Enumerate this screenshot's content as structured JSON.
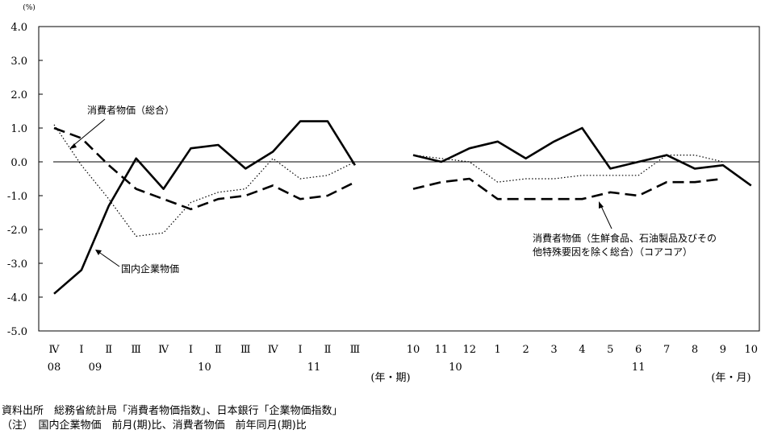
{
  "chart_data": {
    "type": "line",
    "y_unit": "(%)",
    "ylim": [
      -5.0,
      4.0
    ],
    "y_ticks": [
      "4.0",
      "3.0",
      "2.0",
      "1.0",
      "0.0",
      "-1.0",
      "-2.0",
      "-3.0",
      "-4.0",
      "-5.0"
    ],
    "panels": [
      {
        "name": "quarterly",
        "x_ticks": [
          "Ⅳ",
          "Ⅰ",
          "Ⅱ",
          "Ⅲ",
          "Ⅳ",
          "Ⅰ",
          "Ⅱ",
          "Ⅲ",
          "Ⅳ",
          "Ⅰ",
          "Ⅱ",
          "Ⅲ"
        ],
        "year_labels": [
          {
            "label": "08",
            "at": 0
          },
          {
            "label": "09",
            "at": 1.5
          },
          {
            "label": "10",
            "at": 5.5
          },
          {
            "label": "11",
            "at": 9.5
          }
        ],
        "unit_label": "(年・期)",
        "series": [
          {
            "name": "国内企業物価",
            "style": "solid",
            "values": [
              -3.9,
              -3.2,
              -1.3,
              0.1,
              -0.8,
              0.4,
              0.5,
              -0.2,
              0.3,
              1.2,
              1.2,
              -0.1
            ]
          },
          {
            "name": "消費者物価（総合）",
            "style": "dashed",
            "values": [
              1.0,
              0.7,
              -0.1,
              -0.8,
              -1.1,
              -1.4,
              -1.1,
              -1.0,
              -0.7,
              -1.1,
              -1.0,
              -0.6
            ]
          },
          {
            "name": "消費者物価（生鮮食品、石油製品及びその他特殊要因を除く総合）（コアコア）",
            "style": "dotted",
            "values": [
              1.1,
              -0.1,
              -1.1,
              -2.2,
              -2.1,
              -1.2,
              -0.9,
              -0.8,
              0.1,
              -0.5,
              -0.4,
              0.0
            ]
          }
        ]
      },
      {
        "name": "monthly",
        "x_ticks": [
          "10",
          "11",
          "12",
          "1",
          "2",
          "3",
          "4",
          "5",
          "6",
          "7",
          "8",
          "9",
          "10"
        ],
        "year_labels": [
          {
            "label": "10",
            "at": 1.5
          },
          {
            "label": "11",
            "at": 8
          }
        ],
        "unit_label": "(年・月)",
        "series": [
          {
            "name": "国内企業物価",
            "style": "solid",
            "values": [
              0.2,
              0.0,
              0.4,
              0.6,
              0.1,
              0.6,
              1.0,
              -0.2,
              0.0,
              0.2,
              -0.2,
              -0.1,
              -0.7
            ]
          },
          {
            "name": "消費者物価（総合）",
            "style": "dashed",
            "values": [
              -0.8,
              -0.6,
              -0.5,
              -1.1,
              -1.1,
              -1.1,
              -1.1,
              -0.9,
              -1.0,
              -0.6,
              -0.6,
              -0.5,
              null
            ]
          },
          {
            "name": "消費者物価（生鮮食品、石油製品及びその他特殊要因を除く総合）（コアコア）",
            "style": "dotted",
            "values": [
              0.2,
              0.1,
              0.0,
              -0.6,
              -0.5,
              -0.5,
              -0.4,
              -0.4,
              -0.4,
              0.2,
              0.2,
              0.0,
              null
            ]
          }
        ]
      }
    ],
    "annotations": [
      {
        "id": "cpi",
        "text": "消費者物価（総合）"
      },
      {
        "id": "cgpi",
        "text": "国内企業物価"
      },
      {
        "id": "core1",
        "text": "消費者物価（生鮮食品、石油製品及びその"
      },
      {
        "id": "core2",
        "text": "他特殊要因を除く総合）（コアコア）"
      }
    ]
  },
  "footer": {
    "source": "資料出所　総務省統計局「消費者物価指数」、日本銀行「企業物価指数」",
    "note": "（注）　国内企業物価　前月(期)比、消費者物価　前年同月(期)比"
  }
}
